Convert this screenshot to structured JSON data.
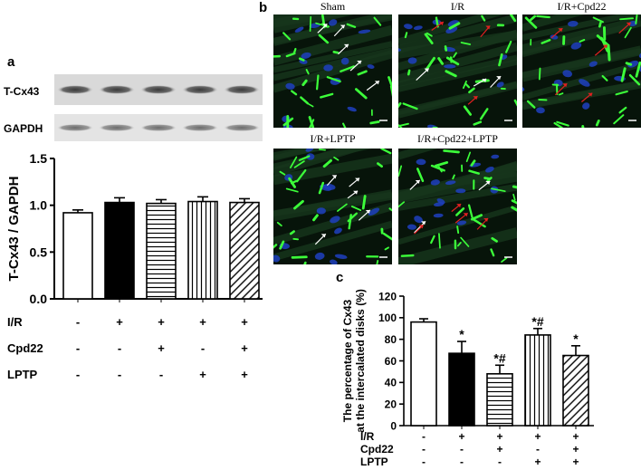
{
  "panels": {
    "a": {
      "letter": "a",
      "blot": {
        "rows": [
          "T-Cx43",
          "GAPDH"
        ],
        "lanes": 5
      },
      "chart_data": {
        "type": "bar",
        "categories": [
          "1",
          "2",
          "3",
          "4",
          "5"
        ],
        "values": [
          0.92,
          1.03,
          1.02,
          1.04,
          1.03
        ],
        "errors": [
          0.03,
          0.05,
          0.04,
          0.05,
          0.04
        ],
        "patterns": [
          "white",
          "black",
          "hlines",
          "vlines",
          "diagonal"
        ],
        "title": "",
        "xlabel": "",
        "ylabel": "T-Cx43 / GAPDH",
        "ylim": [
          0,
          1.5
        ],
        "yticks": [
          "0.0",
          "0.5",
          "1.0",
          "1.5"
        ],
        "condition_rows": [
          {
            "label": "I/R",
            "marks": [
              "-",
              "+",
              "+",
              "+",
              "+"
            ]
          },
          {
            "label": "Cpd22",
            "marks": [
              "-",
              "-",
              "+",
              "-",
              "+"
            ]
          },
          {
            "label": "LPTP",
            "marks": [
              "-",
              "-",
              "-",
              "+",
              "+"
            ]
          }
        ]
      }
    },
    "b": {
      "letter": "b",
      "images": [
        {
          "label": "Sham"
        },
        {
          "label": "I/R"
        },
        {
          "label": "I/R+Cpd22"
        },
        {
          "label": "I/R+LPTP"
        },
        {
          "label": "I/R+Cpd22+LPTP"
        }
      ]
    },
    "c": {
      "letter": "c",
      "chart_data": {
        "type": "bar",
        "categories": [
          "1",
          "2",
          "3",
          "4",
          "5"
        ],
        "values": [
          96,
          67,
          48,
          84,
          65
        ],
        "errors": [
          3,
          11,
          8,
          6,
          9
        ],
        "annotations": [
          "",
          "*",
          "*#",
          "*#",
          "*"
        ],
        "patterns": [
          "white",
          "black",
          "hlines",
          "vlines",
          "diagonal"
        ],
        "title": "",
        "xlabel": "",
        "ylabel": "The percentage of Cx43\nat the intercalated disks (%)",
        "ylim": [
          0,
          120
        ],
        "yticks": [
          "0",
          "20",
          "40",
          "60",
          "80",
          "100",
          "120"
        ],
        "condition_rows": [
          {
            "label": "I/R",
            "marks": [
              "-",
              "+",
              "+",
              "+",
              "+"
            ]
          },
          {
            "label": "Cpd22",
            "marks": [
              "-",
              "-",
              "+",
              "-",
              "+"
            ]
          },
          {
            "label": "LPTP",
            "marks": [
              "-",
              "-",
              "-",
              "+",
              "+"
            ]
          }
        ]
      }
    }
  }
}
